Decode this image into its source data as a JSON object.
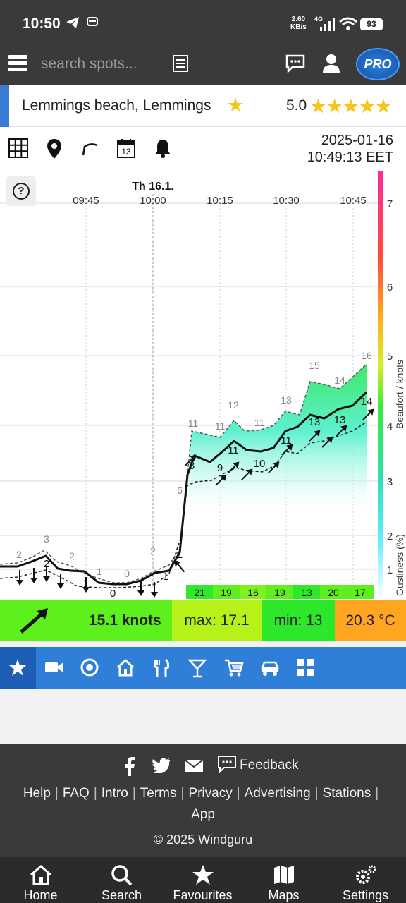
{
  "status_bar": {
    "time": "10:50",
    "net_speed_value": "2.60",
    "net_speed_unit": "KB/s",
    "network_type": "4G",
    "battery": "93"
  },
  "header": {
    "search_placeholder": "search spots...",
    "pro_label": "PRO"
  },
  "spot": {
    "name": "Lemmings beach, Lemmings",
    "rating": "5.0",
    "stars": "★★★★★"
  },
  "toolbar": {
    "calendar_day": "13",
    "date": "2025-01-16",
    "time": "10:49:13 EET"
  },
  "chart_data": {
    "type": "line",
    "day_label": "Th 16.1.",
    "x_ticks": [
      "09:45",
      "10:00",
      "10:15",
      "10:30",
      "10:45"
    ],
    "right_axis_label": "Beaufort / knots",
    "gustiness_label": "Gustiness (%)",
    "beaufort_ticks": [
      "1",
      "2",
      "3",
      "4",
      "5",
      "6",
      "7"
    ],
    "wind_knots": [
      1,
      2,
      1,
      0,
      0,
      1,
      3,
      9,
      11,
      10,
      11,
      13,
      13,
      14
    ],
    "gust_knots": [
      2,
      3,
      2,
      1,
      0,
      2,
      6,
      11,
      11,
      12,
      11,
      13,
      15,
      14,
      16
    ],
    "lull_knots": [
      2,
      1,
      0,
      0,
      1,
      3,
      9,
      10,
      11
    ],
    "gustiness_percent": [
      "21",
      "19",
      "16",
      "19",
      "13",
      "20",
      "17"
    ]
  },
  "summary": {
    "speed": "15.1 knots",
    "max": "max: 17.1",
    "min": "min: 13",
    "temperature": "20.3 °C"
  },
  "footer": {
    "feedback": "Feedback",
    "links": [
      "Help",
      "FAQ",
      "Intro",
      "Terms",
      "Privacy",
      "Advertising",
      "Stations",
      "App"
    ],
    "copyright": "© 2025 Windguru"
  },
  "bottom_nav": [
    "Home",
    "Search",
    "Favourites",
    "Maps",
    "Settings"
  ]
}
